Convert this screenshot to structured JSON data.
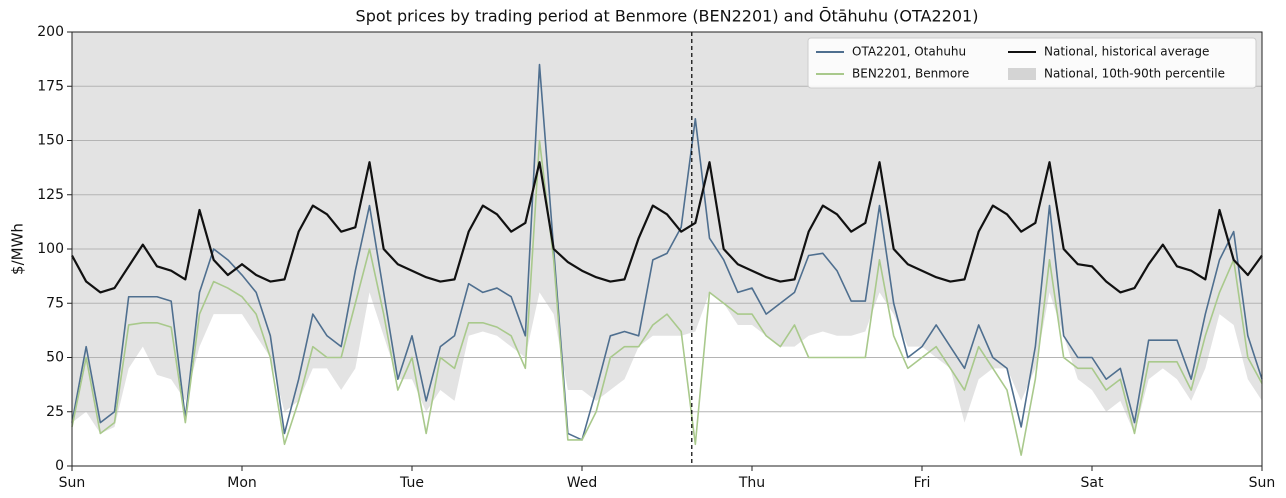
{
  "chart_data": {
    "type": "line",
    "title": "Spot prices by trading period at Benmore (BEN2201) and Ōtāhuhu (OTA2201)",
    "y_label": "$/MWh",
    "x": [
      0,
      2,
      4,
      6,
      8,
      10,
      12,
      14,
      16,
      18,
      20,
      22,
      24,
      26,
      28,
      30,
      32,
      34,
      36,
      38,
      40,
      42,
      44,
      46,
      48,
      50,
      52,
      54,
      56,
      58,
      60,
      62,
      64,
      66,
      68,
      70,
      72,
      74,
      76,
      78,
      80,
      82,
      84,
      86,
      88,
      90,
      92,
      94,
      96,
      98,
      100,
      102,
      104,
      106,
      108,
      110,
      112,
      114,
      116,
      118,
      120,
      122,
      124,
      126,
      128,
      130,
      132,
      134,
      136,
      138,
      140,
      142,
      144,
      146,
      148,
      150,
      152,
      154,
      156,
      158,
      160,
      162,
      164,
      166,
      168
    ],
    "xlim": [
      0,
      168
    ],
    "xticks": [
      {
        "value": 0,
        "label": "Sun"
      },
      {
        "value": 24,
        "label": "Mon"
      },
      {
        "value": 48,
        "label": "Tue"
      },
      {
        "value": 72,
        "label": "Wed"
      },
      {
        "value": 96,
        "label": "Thu"
      },
      {
        "value": 120,
        "label": "Fri"
      },
      {
        "value": 144,
        "label": "Sat"
      },
      {
        "value": 168,
        "label": "Sun"
      }
    ],
    "ylim": [
      0,
      200
    ],
    "yticks": [
      0,
      25,
      50,
      75,
      100,
      125,
      150,
      175,
      200
    ],
    "grid": true,
    "legend": "upper right",
    "marker_x": 87.5,
    "series": [
      {
        "name": "OTA2201, Otahuhu",
        "color": "#4f6f8f",
        "style": "line",
        "values": [
          20,
          55,
          20,
          25,
          78,
          78,
          78,
          76,
          22,
          80,
          100,
          95,
          88,
          80,
          60,
          15,
          40,
          70,
          60,
          55,
          90,
          120,
          80,
          40,
          60,
          30,
          55,
          60,
          84,
          80,
          82,
          78,
          60,
          185,
          100,
          15,
          12,
          35,
          60,
          62,
          60,
          95,
          98,
          110,
          160,
          105,
          95,
          80,
          82,
          70,
          75,
          80,
          97,
          98,
          90,
          76,
          76,
          120,
          75,
          50,
          55,
          65,
          55,
          45,
          65,
          50,
          45,
          18,
          55,
          120,
          60,
          50,
          50,
          40,
          45,
          20,
          58,
          58,
          58,
          40,
          70,
          95,
          108,
          60,
          40
        ]
      },
      {
        "name": "BEN2201, Benmore",
        "color": "#a9c98c",
        "style": "line",
        "values": [
          18,
          50,
          15,
          20,
          65,
          66,
          66,
          64,
          20,
          70,
          85,
          82,
          78,
          70,
          50,
          10,
          30,
          55,
          50,
          50,
          75,
          100,
          70,
          35,
          50,
          15,
          50,
          45,
          66,
          66,
          64,
          60,
          45,
          150,
          95,
          12,
          12,
          25,
          50,
          55,
          55,
          65,
          70,
          62,
          10,
          80,
          75,
          70,
          70,
          60,
          55,
          65,
          50,
          50,
          50,
          50,
          50,
          95,
          60,
          45,
          50,
          55,
          45,
          35,
          55,
          45,
          35,
          5,
          40,
          95,
          50,
          45,
          45,
          35,
          40,
          15,
          48,
          48,
          48,
          35,
          60,
          80,
          95,
          50,
          38
        ]
      },
      {
        "name": "National, historical average",
        "color": "#111111",
        "style": "line",
        "values": [
          97,
          85,
          80,
          82,
          92,
          102,
          92,
          90,
          86,
          118,
          95,
          88,
          93,
          88,
          85,
          86,
          108,
          120,
          116,
          108,
          110,
          140,
          100,
          93,
          90,
          87,
          85,
          86,
          108,
          120,
          116,
          108,
          112,
          140,
          100,
          94,
          90,
          87,
          85,
          86,
          105,
          120,
          116,
          108,
          112,
          140,
          100,
          93,
          90,
          87,
          85,
          86,
          108,
          120,
          116,
          108,
          112,
          140,
          100,
          93,
          90,
          87,
          85,
          86,
          108,
          120,
          116,
          108,
          112,
          140,
          100,
          93,
          92,
          85,
          80,
          82,
          93,
          102,
          92,
          90,
          86,
          118,
          95,
          88,
          97
        ]
      },
      {
        "name": "National, 10th-90th percentile",
        "color": "#e3e3e3",
        "style": "band",
        "values": [
          20,
          25,
          15,
          18,
          45,
          55,
          42,
          40,
          30,
          55,
          70,
          70,
          70,
          60,
          50,
          25,
          30,
          45,
          45,
          35,
          45,
          80,
          60,
          40,
          40,
          25,
          35,
          30,
          60,
          62,
          60,
          55,
          50,
          80,
          70,
          35,
          35,
          30,
          35,
          40,
          55,
          60,
          60,
          60,
          62,
          80,
          75,
          65,
          65,
          60,
          55,
          55,
          60,
          62,
          60,
          60,
          62,
          80,
          70,
          55,
          55,
          50,
          45,
          20,
          40,
          45,
          45,
          30,
          45,
          80,
          60,
          40,
          35,
          25,
          30,
          15,
          40,
          45,
          40,
          30,
          45,
          70,
          65,
          40,
          30
        ]
      }
    ]
  }
}
